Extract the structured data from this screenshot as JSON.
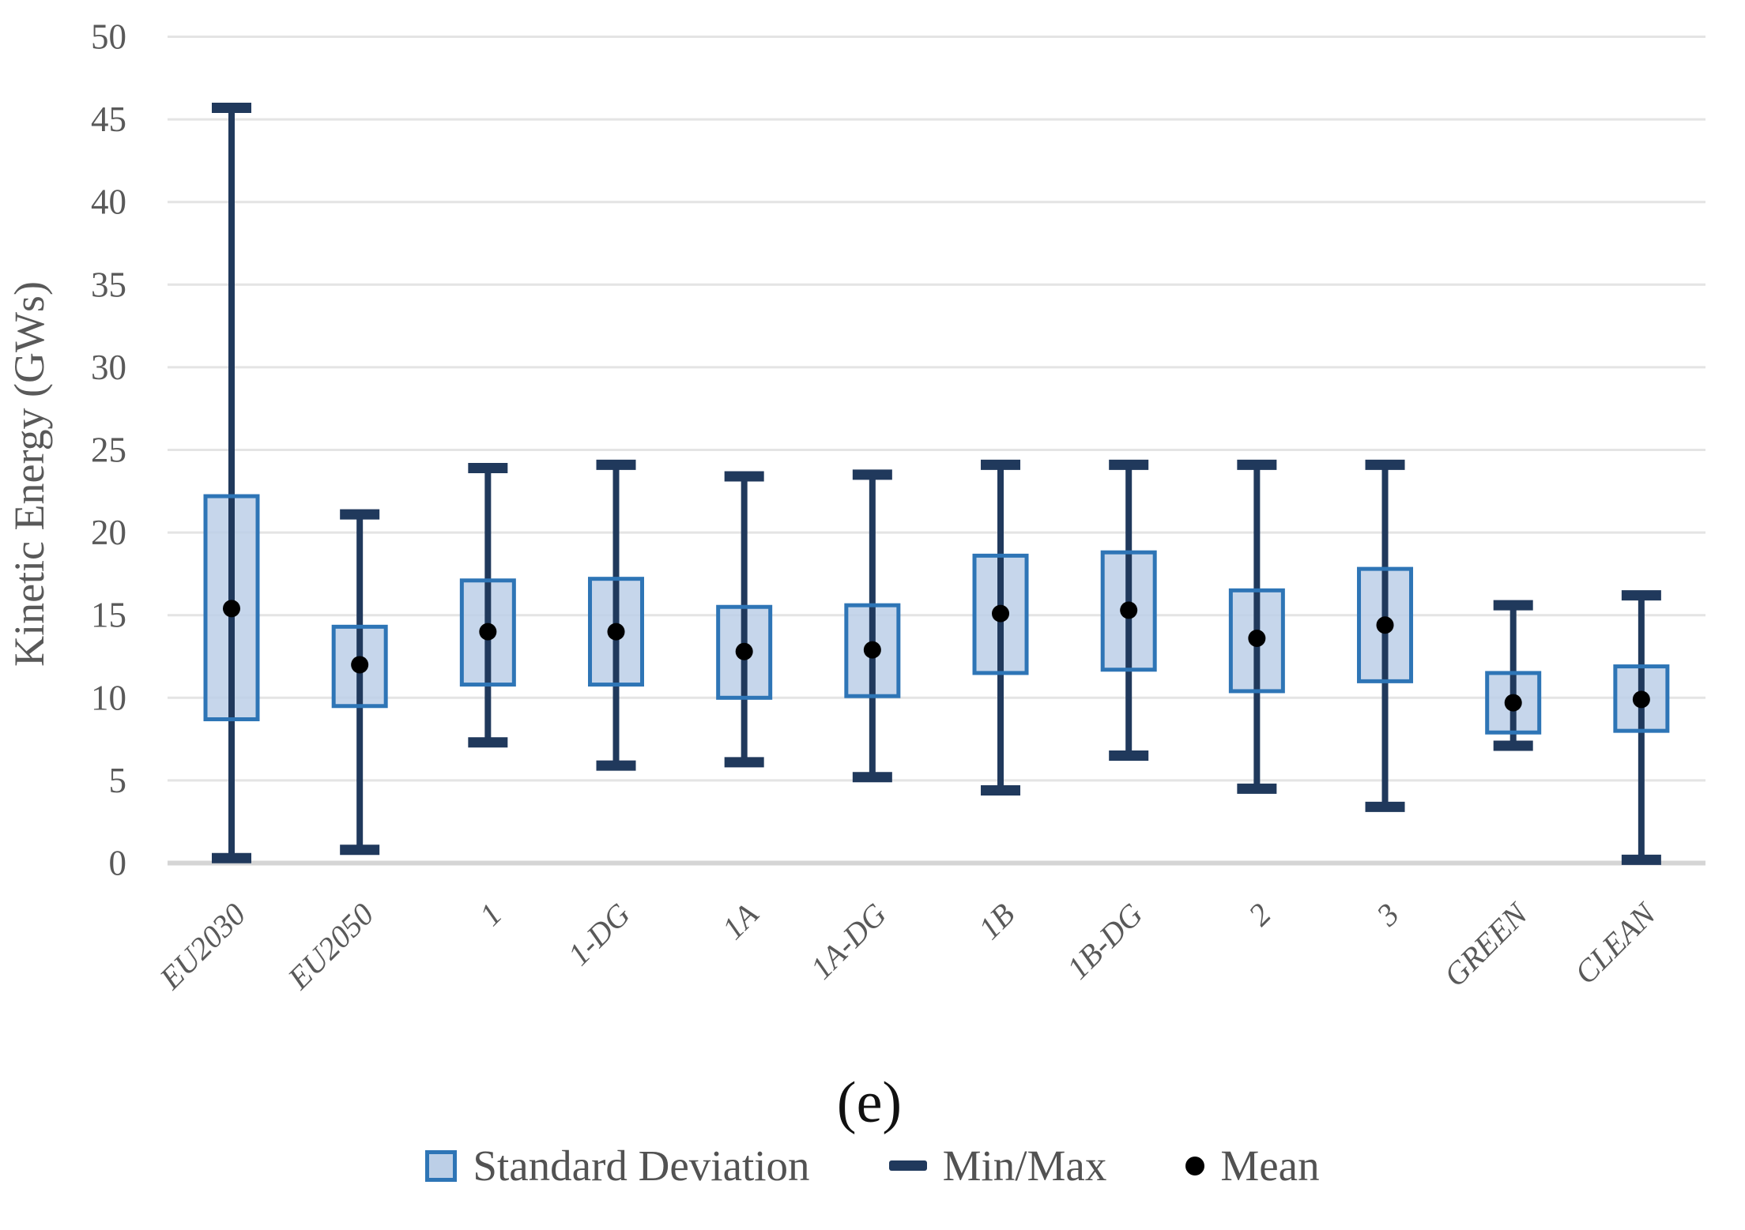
{
  "chart_data": {
    "type": "box",
    "title": "(e)",
    "xlabel": "",
    "ylabel": "Kinetic Energy (GWs)",
    "ylim": [
      0,
      50
    ],
    "yticks": [
      0,
      5,
      10,
      15,
      20,
      25,
      30,
      35,
      40,
      45,
      50
    ],
    "grid": true,
    "legend_position": "bottom",
    "categories": [
      "EU2030",
      "EU2050",
      "1",
      "1-DG",
      "1A",
      "1A-DG",
      "1B",
      "1B-DG",
      "2",
      "3",
      "GREEN",
      "CLEAN"
    ],
    "series": [
      {
        "name": "Standard Deviation",
        "marker": "box",
        "low": [
          8.7,
          9.5,
          10.8,
          10.8,
          10.0,
          10.1,
          11.5,
          11.7,
          10.4,
          11.0,
          7.9,
          8.0
        ],
        "high": [
          22.2,
          14.3,
          17.1,
          17.2,
          15.5,
          15.6,
          18.6,
          18.8,
          16.5,
          17.8,
          11.5,
          11.9
        ]
      },
      {
        "name": "Min/Max",
        "marker": "whisker",
        "min": [
          0.3,
          0.8,
          7.3,
          5.9,
          6.1,
          5.2,
          4.4,
          6.5,
          4.5,
          3.4,
          7.1,
          0.2
        ],
        "max": [
          45.7,
          21.1,
          23.9,
          24.1,
          23.4,
          23.5,
          24.1,
          24.1,
          24.1,
          24.1,
          15.6,
          16.2
        ]
      },
      {
        "name": "Mean",
        "marker": "dot",
        "values": [
          15.4,
          12.0,
          14.0,
          14.0,
          12.8,
          12.9,
          15.1,
          15.3,
          13.6,
          14.4,
          9.7,
          9.9
        ]
      }
    ],
    "colors": {
      "box_fill": "#BCCFE7",
      "box_border": "#2E75B6",
      "whisker": "#20395C",
      "mean_dot": "#000000",
      "gridline": "#E4E4E4",
      "axis_line": "#D5D5D5",
      "label_text": "#595959",
      "legend_text": "#525252",
      "caption_text": "#111111"
    }
  }
}
